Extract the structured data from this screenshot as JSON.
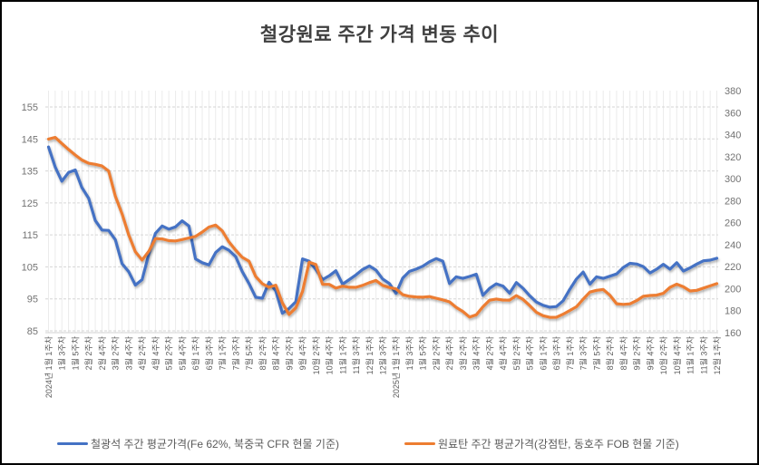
{
  "chart_data": {
    "type": "line",
    "title": "철강원료 주간 가격 변동 추이",
    "x_label_every": 2,
    "n_points": 101,
    "x_labels": [
      "2024년 1월 1주차",
      "1월 3주차",
      "1월 5주차",
      "2월 2주차",
      "2월 4주차",
      "3월 2주차",
      "3월 4주차",
      "4월 2주차",
      "4월 4주차",
      "5월 2주차",
      "5월 4주차",
      "6월 1주차",
      "6월 3주차",
      "7월 1주차",
      "7월 3주차",
      "7월 5주차",
      "8월 2주차",
      "8월 4주차",
      "9월 2주차",
      "9월 4주차",
      "10월 2주차",
      "10월 4주차",
      "11월 1주차",
      "11월 3주차",
      "12월 1주차",
      "12월 3주차",
      "2025년 1월 1주차",
      "1월 3주차",
      "1월 5주차",
      "2월 2주차",
      "2월 4주차",
      "3월 2주차",
      "3월 4주차",
      "4월 2주차",
      "4월 4주차",
      "5월 2주차",
      "5월 4주차",
      "6월 1주차",
      "6월 3주차",
      "7월 1주차",
      "7월 3주차",
      "7월 5주차",
      "8월 2주차",
      "8월 4주차",
      "9월 2주차",
      "9월 4주차",
      "10월 2주차",
      "10월 4주차",
      "11월 1주차",
      "11월 3주차",
      "12월 1주차"
    ],
    "series": [
      {
        "name": "철광석 주간 평균가격(Fe 62%, 북중국 CFR 현물 기준)",
        "color": "#4472C4",
        "axis": "left",
        "values": [
          142.5,
          136.2,
          131.8,
          134.5,
          135.3,
          129.8,
          126.5,
          119.5,
          116.5,
          116.4,
          113.5,
          106,
          103.5,
          99.3,
          101,
          109,
          115.5,
          117.8,
          116.8,
          117.5,
          119.4,
          117.8,
          107.5,
          106.3,
          105.6,
          109.5,
          111.3,
          110.2,
          108.2,
          103.5,
          99.8,
          95.5,
          95.2,
          100.2,
          97.5,
          90.5,
          92,
          94.1,
          107.5,
          106.8,
          104.2,
          101,
          102.2,
          103.8,
          99.6,
          101,
          102.5,
          104.2,
          105.3,
          104,
          101.2,
          99.8,
          96.7,
          101.5,
          103.6,
          104.3,
          105.2,
          106.6,
          107.6,
          106.8,
          99.8,
          101.9,
          101.4,
          102,
          102.7,
          96.1,
          98.3,
          99.7,
          99,
          96.8,
          100.1,
          98.3,
          96,
          94,
          93,
          92.4,
          92.6,
          94.4,
          98,
          101.2,
          103.4,
          99.6,
          101.9,
          101.4,
          102.1,
          102.8,
          104.8,
          106.1,
          105.9,
          105.1,
          103.1,
          104.3,
          105.8,
          104.3,
          106.3,
          103.7,
          104.7,
          105.9,
          106.9,
          107.1,
          107.7
        ]
      },
      {
        "name": "원료탄 주간 평균가격(강점탄, 동호주 FOB 현물 기준)",
        "color": "#ED7D31",
        "axis": "right",
        "values": [
          336,
          337.5,
          332,
          326.5,
          321.5,
          317,
          314,
          313,
          311.5,
          307,
          284,
          268,
          249,
          233.5,
          226,
          234,
          245.5,
          245.2,
          243.6,
          243.4,
          244.6,
          246.1,
          247.5,
          251.5,
          256,
          257.8,
          252.5,
          242.5,
          235,
          228.5,
          225,
          211,
          204.5,
          201.3,
          203.2,
          187,
          176.6,
          182.5,
          197.5,
          224,
          222,
          204,
          203.9,
          200.5,
          202.3,
          201.3,
          201.2,
          203,
          205.5,
          207.5,
          203,
          201,
          199.8,
          194.5,
          193,
          192.5,
          192.2,
          192.8,
          191.2,
          189.8,
          188,
          183,
          179.3,
          174.2,
          176.2,
          183.5,
          189.5,
          190.6,
          189.7,
          189.6,
          193.7,
          190.2,
          184.6,
          178.5,
          175.4,
          173.9,
          174,
          176.8,
          180.2,
          183.6,
          190.5,
          196.9,
          198.5,
          199.2,
          194,
          186.3,
          185.7,
          186.2,
          189.2,
          193,
          193.8,
          194.1,
          195.8,
          201.2,
          204.1,
          201.7,
          197.9,
          198.5,
          200.5,
          202.5,
          204.6
        ]
      }
    ],
    "left_axis": {
      "min": 85,
      "max": 155,
      "step": 10,
      "ticks": [
        85,
        95,
        105,
        115,
        125,
        135,
        145,
        155
      ]
    },
    "right_axis": {
      "min": 160,
      "max": 380,
      "step": 20,
      "ticks": [
        160,
        180,
        200,
        220,
        240,
        260,
        280,
        300,
        320,
        340,
        360,
        380
      ]
    },
    "grid": {
      "horizontal": "dashed",
      "vertical": "per-point"
    },
    "legend_position": "bottom"
  },
  "style": {
    "tick_color": "#737373",
    "x_label_color": "#595959",
    "h_grid_color": "#d6d6d6",
    "v_grid_color": "#ebebeb",
    "axis_line_color": "#d0d0d0"
  }
}
